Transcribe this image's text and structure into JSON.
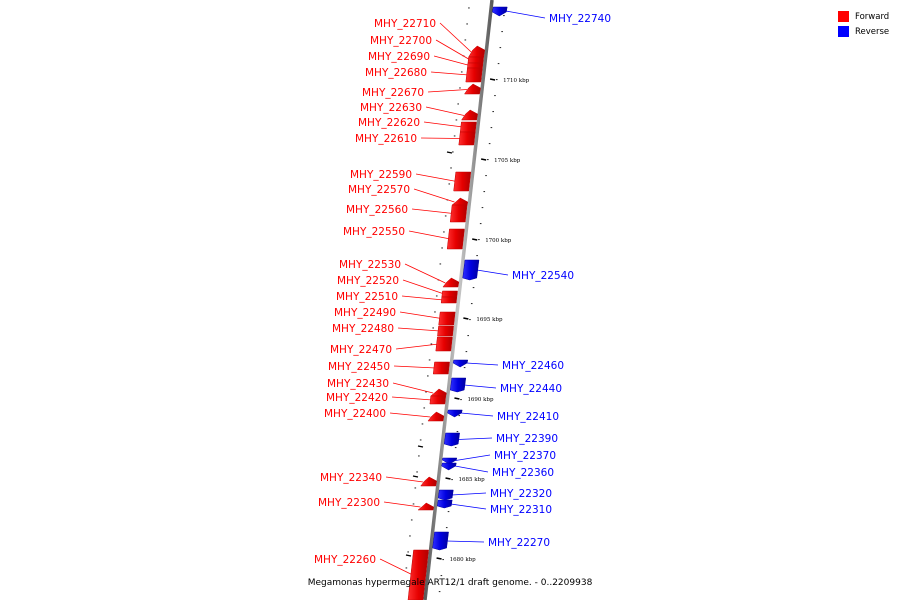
{
  "legend": [
    {
      "label": "Forward",
      "color": "#ff0000"
    },
    {
      "label": "Reverse",
      "color": "#0000ff"
    }
  ],
  "caption": "Megamonas hypermegale ART12/1 draft genome. - 0..2209938",
  "scale_ticks": [
    "1710 kbp",
    "1705 kbp",
    "1700 kbp",
    "1695 kbp",
    "1690 kbp",
    "1685 kbp",
    "1680 kbp"
  ],
  "genes_forward": [
    "MHY_22710",
    "MHY_22700",
    "MHY_22690",
    "MHY_22680",
    "MHY_22670",
    "MHY_22630",
    "MHY_22620",
    "MHY_22610",
    "MHY_22590",
    "MHY_22570",
    "MHY_22560",
    "MHY_22550",
    "MHY_22530",
    "MHY_22520",
    "MHY_22510",
    "MHY_22490",
    "MHY_22480",
    "MHY_22470",
    "MHY_22450",
    "MHY_22430",
    "MHY_22420",
    "MHY_22400",
    "MHY_22340",
    "MHY_22300",
    "MHY_22260"
  ],
  "genes_reverse": [
    "MHY_22740",
    "MHY_22540",
    "MHY_22460",
    "MHY_22440",
    "MHY_22410",
    "MHY_22390",
    "MHY_22370",
    "MHY_22360",
    "MHY_22320",
    "MHY_22310",
    "MHY_22270"
  ],
  "colors": {
    "forward": "#ff0000",
    "reverse": "#0000ff",
    "axis": "#8a8a8a"
  }
}
